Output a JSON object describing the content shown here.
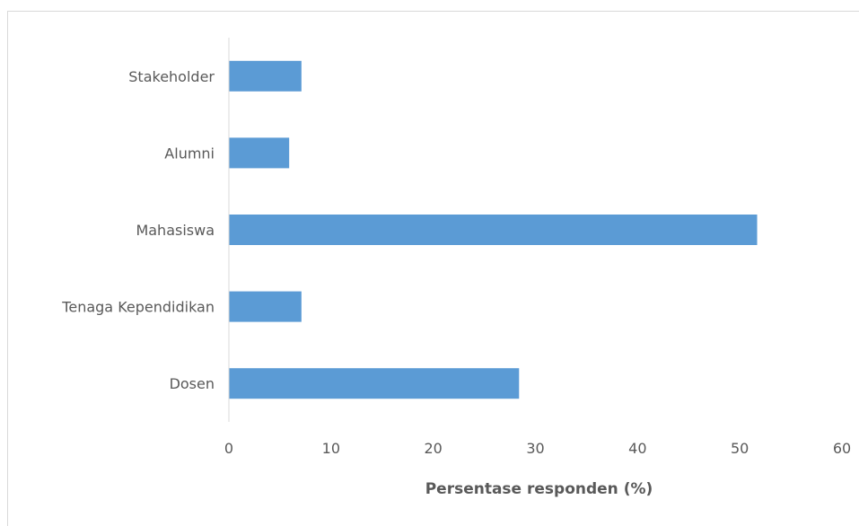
{
  "chart_data": {
    "type": "bar",
    "orientation": "horizontal",
    "categories": [
      "Stakeholder",
      "Alumni",
      "Mahasiswa",
      "Tenaga Kependidikan",
      "Dosen"
    ],
    "values": [
      7.1,
      5.9,
      51.7,
      7.1,
      28.4
    ],
    "xlabel": "Persentase responden (%)",
    "ylabel": "",
    "xlim": [
      0,
      60
    ],
    "xticks": [
      "0",
      "10",
      "20",
      "30",
      "40",
      "50",
      "60"
    ],
    "grid": false,
    "legend": "none",
    "bar_color": "#5B9BD5",
    "axis_color": "#d9d9d9",
    "text_color": "#595959"
  }
}
